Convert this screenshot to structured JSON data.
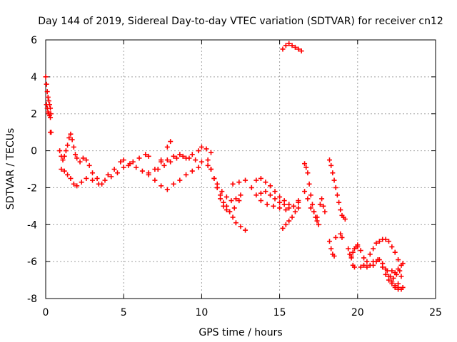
{
  "chart_data": {
    "type": "scatter",
    "title": "Day 144 of 2019, Sidereal Day-to-day VTEC variation (SDTVAR) for receiver cn12",
    "xlabel": "GPS time / hours",
    "ylabel": "SDTVAR / TECUs",
    "xlim": [
      0,
      25
    ],
    "ylim": [
      -8,
      6
    ],
    "xticks": [
      0,
      5,
      10,
      15,
      20,
      25
    ],
    "yticks": [
      -8,
      -6,
      -4,
      -2,
      0,
      2,
      4,
      6
    ],
    "xtick_labels": [
      "0",
      "5",
      "10",
      "15",
      "20",
      "25"
    ],
    "ytick_labels": [
      "-8",
      "-6",
      "-4",
      "-2",
      "0",
      "2",
      "4",
      "6"
    ],
    "grid": true,
    "marker": "+",
    "color": "#ff0000",
    "series": [
      {
        "name": "SDTVAR",
        "x": [
          0.0,
          0.05,
          0.1,
          0.15,
          0.2,
          0.25,
          0.3,
          0.33,
          0.05,
          0.1,
          0.15,
          0.2,
          0.25,
          0.3,
          0.3,
          0.35,
          0.9,
          1.0,
          1.1,
          1.2,
          1.3,
          1.4,
          1.5,
          1.6,
          1.7,
          1.8,
          1.9,
          2.0,
          2.2,
          2.4,
          2.6,
          2.8,
          1.0,
          1.2,
          1.4,
          1.6,
          1.8,
          2.0,
          2.3,
          2.6,
          3.0,
          3.3,
          3.6,
          4.0,
          4.4,
          4.8,
          5.0,
          5.3,
          5.6,
          6.0,
          6.4,
          6.6,
          3.0,
          3.4,
          3.8,
          4.2,
          4.6,
          5.0,
          5.4,
          5.8,
          6.2,
          6.6,
          7.0,
          7.4,
          7.8,
          8.0,
          6.6,
          7.0,
          7.4,
          7.8,
          8.2,
          8.6,
          9.0,
          9.4,
          9.8,
          7.2,
          7.6,
          8.0,
          8.4,
          8.8,
          9.2,
          9.6,
          10.0,
          10.4,
          7.4,
          7.8,
          8.2,
          8.6,
          9.0,
          9.4,
          9.8,
          10.0,
          10.3,
          10.6,
          10.4,
          10.6,
          10.8,
          11.0,
          11.2,
          11.4,
          11.6,
          11.8,
          12.0,
          12.2,
          12.5,
          12.8,
          10.6,
          10.8,
          11.0,
          11.2,
          11.4,
          11.6,
          11.8,
          12.1,
          12.4,
          11.0,
          11.3,
          11.6,
          11.9,
          12.2,
          12.5,
          12.0,
          12.4,
          12.8,
          13.2,
          13.5,
          13.8,
          14.1,
          14.4,
          14.7,
          15.0,
          15.3,
          15.6,
          15.9,
          16.2,
          13.5,
          13.8,
          14.1,
          14.4,
          14.7,
          15.0,
          15.3,
          15.6,
          15.9,
          16.2,
          13.8,
          14.2,
          14.6,
          15.0,
          15.4,
          15.2,
          15.4,
          15.6,
          15.8,
          16.0,
          16.2,
          15.2,
          15.4,
          15.6,
          15.8,
          16.0,
          16.2,
          16.4,
          16.6,
          16.7,
          16.8,
          16.9,
          17.0,
          17.1,
          17.2,
          17.3,
          17.4,
          17.5,
          17.6,
          17.7,
          17.8,
          17.9,
          16.6,
          16.8,
          17.0,
          17.2,
          17.4,
          18.2,
          18.3,
          18.4,
          18.5,
          18.6,
          18.7,
          18.8,
          18.9,
          19.0,
          19.1,
          19.2,
          18.2,
          18.3,
          18.4,
          18.5,
          18.6,
          18.9,
          19.0,
          19.4,
          19.5,
          19.6,
          19.7,
          19.8,
          19.9,
          20.0,
          19.6,
          19.7,
          19.8,
          20.0,
          20.2,
          20.4,
          20.6,
          20.8,
          21.0,
          21.2,
          21.4,
          21.6,
          21.8,
          22.0,
          22.2,
          22.4,
          22.6,
          20.2,
          20.4,
          20.6,
          20.8,
          21.0,
          21.3,
          21.6,
          21.9,
          22.1,
          22.3,
          22.5,
          22.7,
          21.0,
          21.2,
          21.4,
          21.6,
          21.8,
          22.0,
          22.2,
          22.4,
          22.6,
          21.8,
          22.0,
          22.2,
          22.4,
          22.6,
          22.8,
          22.9,
          22.2,
          22.4,
          22.6,
          22.8,
          22.9,
          22.8,
          22.6
        ],
        "y": [
          4.0,
          3.6,
          3.2,
          2.9,
          2.7,
          2.5,
          2.3,
          2.0,
          2.5,
          2.3,
          2.1,
          2.0,
          1.9,
          1.8,
          1.0,
          1.0,
          0.0,
          -0.3,
          -0.5,
          -0.3,
          0.0,
          0.3,
          0.7,
          0.9,
          0.6,
          0.2,
          -0.2,
          -0.4,
          -0.6,
          -0.4,
          -0.5,
          -0.8,
          -1.0,
          -1.1,
          -1.3,
          -1.5,
          -1.8,
          -1.9,
          -1.7,
          -1.5,
          -1.2,
          -1.5,
          -1.8,
          -1.3,
          -1.0,
          -0.6,
          -0.5,
          -0.8,
          -0.6,
          -0.4,
          -0.2,
          -0.3,
          -1.6,
          -1.8,
          -1.6,
          -1.4,
          -1.2,
          -0.9,
          -0.7,
          -0.9,
          -1.1,
          -1.3,
          -1.0,
          -0.5,
          0.2,
          0.5,
          -1.2,
          -1.6,
          -1.9,
          -2.1,
          -1.8,
          -1.6,
          -1.3,
          -1.1,
          -0.9,
          -1.0,
          -0.8,
          -0.6,
          -0.4,
          -0.3,
          -0.4,
          -0.5,
          -0.6,
          -0.8,
          -0.6,
          -0.5,
          -0.3,
          -0.2,
          -0.4,
          -0.2,
          0.0,
          0.2,
          0.1,
          -0.1,
          -0.5,
          -1.0,
          -1.5,
          -2.0,
          -2.4,
          -2.8,
          -3.0,
          -3.3,
          -3.6,
          -3.9,
          -4.1,
          -4.3,
          -1.0,
          -1.5,
          -2.0,
          -2.6,
          -3.0,
          -3.2,
          -3.3,
          -3.1,
          -2.7,
          -1.8,
          -2.2,
          -2.5,
          -2.7,
          -2.6,
          -2.4,
          -1.8,
          -1.7,
          -1.6,
          -2.0,
          -1.6,
          -1.5,
          -1.7,
          -1.9,
          -2.2,
          -2.5,
          -2.7,
          -2.9,
          -3.0,
          -2.8,
          -2.4,
          -2.3,
          -2.2,
          -2.4,
          -2.6,
          -2.8,
          -2.9,
          -3.1,
          -3.0,
          -2.7,
          -2.7,
          -2.9,
          -3.0,
          -3.1,
          -3.2,
          -4.2,
          -4.0,
          -3.8,
          -3.6,
          -3.3,
          -3.1,
          5.5,
          5.7,
          5.8,
          5.7,
          5.6,
          5.5,
          5.4,
          -0.7,
          -0.9,
          -1.2,
          -1.8,
          -2.4,
          -2.9,
          -3.3,
          -3.6,
          -3.8,
          -4.0,
          -2.9,
          -2.6,
          -3.0,
          -3.3,
          -2.2,
          -2.6,
          -3.1,
          -3.3,
          -3.6,
          -0.5,
          -0.8,
          -1.2,
          -1.6,
          -2.0,
          -2.4,
          -2.8,
          -3.2,
          -3.5,
          -3.6,
          -3.7,
          -4.9,
          -5.3,
          -5.6,
          -5.7,
          -4.7,
          -4.5,
          -4.7,
          -5.3,
          -5.6,
          -5.7,
          -5.5,
          -5.3,
          -5.2,
          -5.2,
          -5.8,
          -6.2,
          -6.3,
          -5.1,
          -5.4,
          -5.8,
          -6.0,
          -5.6,
          -5.3,
          -5.0,
          -4.9,
          -4.8,
          -4.8,
          -4.9,
          -5.2,
          -5.5,
          -5.9,
          -6.3,
          -6.2,
          -6.3,
          -6.2,
          -6.0,
          -5.9,
          -6.1,
          -6.5,
          -6.8,
          -6.9,
          -6.7,
          -6.5,
          -6.2,
          -6.0,
          -5.9,
          -6.3,
          -6.7,
          -7.0,
          -7.2,
          -7.3,
          -7.4,
          -6.4,
          -6.8,
          -7.1,
          -7.4,
          -7.5,
          -7.5,
          -7.4,
          -6.5,
          -6.6,
          -6.4,
          -6.2,
          -6.1,
          -6.8,
          -7.2
        ]
      }
    ]
  }
}
